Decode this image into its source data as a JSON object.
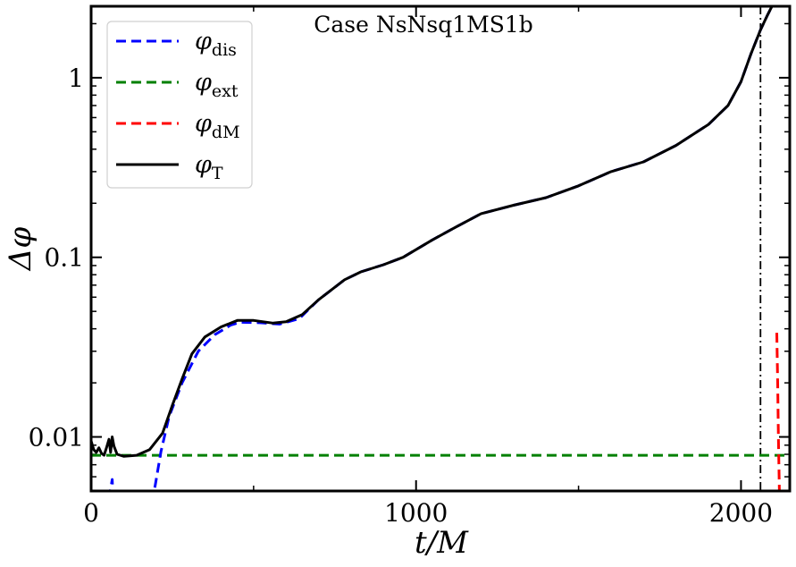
{
  "chart_data": {
    "type": "line",
    "title": "Case NsNsq1MS1b",
    "xlabel": "t/M",
    "ylabel": "Δφ",
    "xlim": [
      0,
      2150
    ],
    "ylim": [
      0.005,
      2.5
    ],
    "yscale": "log",
    "xticks": [
      0,
      1000,
      2000
    ],
    "xtick_labels": [
      "0",
      "1000",
      "2000"
    ],
    "yticks": [
      0.01,
      0.1,
      1
    ],
    "ytick_labels": [
      "0.01",
      "0.1",
      "1"
    ],
    "grid": false,
    "legend_position": "top-left",
    "vline": {
      "x": 2060,
      "style": "dash-dot",
      "color": "#000000"
    },
    "series": [
      {
        "name": "φ",
        "subscript": "dis",
        "color": "#0000ff",
        "style": "dashed",
        "points": [
          [
            55,
            0.0045
          ],
          [
            65,
            0.0058
          ],
          [
            68,
            0.0045
          ],
          [
            190,
            0.0045
          ],
          [
            215,
            0.0083
          ],
          [
            240,
            0.013
          ],
          [
            280,
            0.02
          ],
          [
            330,
            0.03
          ],
          [
            380,
            0.037
          ],
          [
            430,
            0.042
          ],
          [
            460,
            0.0435
          ],
          [
            520,
            0.0432
          ],
          [
            580,
            0.0425
          ],
          [
            640,
            0.0455
          ],
          [
            700,
            0.058
          ],
          [
            780,
            0.075
          ],
          [
            830,
            0.083
          ],
          [
            900,
            0.091
          ],
          [
            960,
            0.1
          ],
          [
            1050,
            0.125
          ],
          [
            1130,
            0.15
          ],
          [
            1200,
            0.175
          ],
          [
            1300,
            0.195
          ],
          [
            1400,
            0.215
          ],
          [
            1500,
            0.25
          ],
          [
            1600,
            0.3
          ],
          [
            1700,
            0.34
          ],
          [
            1800,
            0.42
          ],
          [
            1900,
            0.55
          ],
          [
            1960,
            0.7
          ],
          [
            2000,
            0.95
          ],
          [
            2030,
            1.35
          ],
          [
            2060,
            1.85
          ],
          [
            2080,
            2.2
          ],
          [
            2100,
            2.6
          ]
        ]
      },
      {
        "name": "φ",
        "subscript": "ext",
        "color": "#008000",
        "style": "dashed",
        "points": [
          [
            0,
            0.0079
          ],
          [
            2150,
            0.0079
          ]
        ]
      },
      {
        "name": "φ",
        "subscript": "dM",
        "color": "#ff0000",
        "style": "dashed",
        "points": [
          [
            2110,
            0.038
          ],
          [
            2113,
            0.02
          ],
          [
            2115,
            0.01
          ],
          [
            2118,
            0.005
          ]
        ]
      },
      {
        "name": "φ",
        "subscript": "T",
        "color": "#000000",
        "style": "solid",
        "points": [
          [
            0,
            0.0095
          ],
          [
            8,
            0.0085
          ],
          [
            16,
            0.0082
          ],
          [
            24,
            0.0087
          ],
          [
            32,
            0.0081
          ],
          [
            40,
            0.0079
          ],
          [
            48,
            0.0088
          ],
          [
            55,
            0.0097
          ],
          [
            60,
            0.0082
          ],
          [
            65,
            0.01
          ],
          [
            70,
            0.0089
          ],
          [
            80,
            0.008
          ],
          [
            100,
            0.0078
          ],
          [
            140,
            0.0079
          ],
          [
            180,
            0.0085
          ],
          [
            220,
            0.0105
          ],
          [
            250,
            0.015
          ],
          [
            280,
            0.021
          ],
          [
            310,
            0.029
          ],
          [
            350,
            0.036
          ],
          [
            400,
            0.041
          ],
          [
            450,
            0.0445
          ],
          [
            500,
            0.0445
          ],
          [
            560,
            0.043
          ],
          [
            600,
            0.0438
          ],
          [
            650,
            0.048
          ],
          [
            700,
            0.058
          ],
          [
            780,
            0.075
          ],
          [
            830,
            0.083
          ],
          [
            900,
            0.091
          ],
          [
            960,
            0.1
          ],
          [
            1050,
            0.125
          ],
          [
            1130,
            0.15
          ],
          [
            1200,
            0.175
          ],
          [
            1300,
            0.195
          ],
          [
            1400,
            0.215
          ],
          [
            1500,
            0.25
          ],
          [
            1600,
            0.3
          ],
          [
            1700,
            0.34
          ],
          [
            1800,
            0.42
          ],
          [
            1900,
            0.55
          ],
          [
            1960,
            0.7
          ],
          [
            2000,
            0.95
          ],
          [
            2030,
            1.35
          ],
          [
            2060,
            1.85
          ],
          [
            2080,
            2.2
          ],
          [
            2100,
            2.6
          ]
        ]
      }
    ]
  }
}
